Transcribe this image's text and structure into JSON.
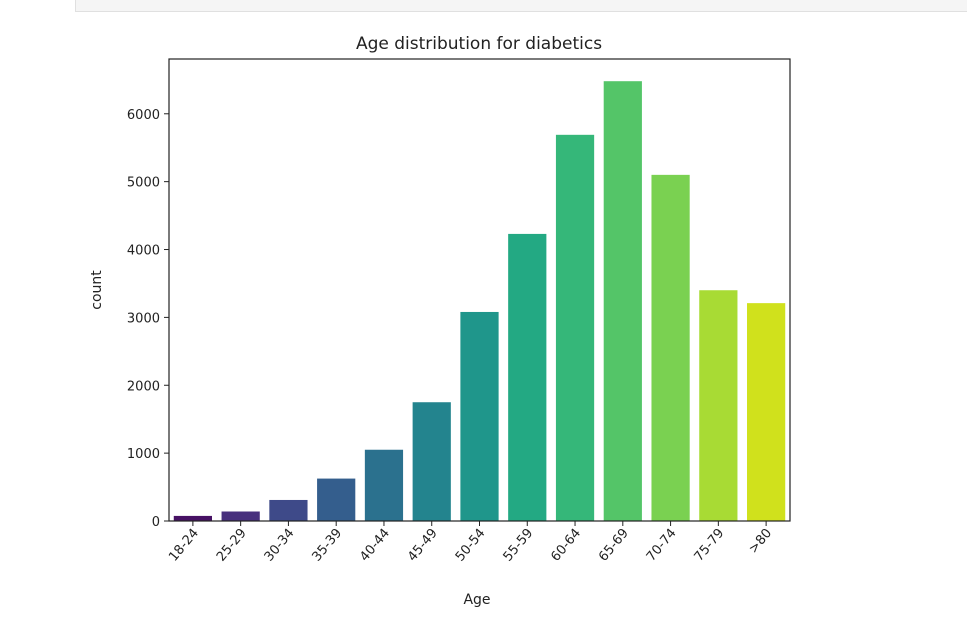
{
  "chart_data": {
    "type": "bar",
    "title": "Age distribution for diabetics",
    "xlabel": "Age",
    "ylabel": "count",
    "categories": [
      "18-24",
      "25-29",
      "30-34",
      "35-39",
      "40-44",
      "45-49",
      "50-54",
      "55-59",
      "60-64",
      "65-69",
      "70-74",
      "75-79",
      ">80"
    ],
    "values": [
      75,
      140,
      310,
      625,
      1050,
      1750,
      3080,
      4230,
      5690,
      6480,
      5100,
      3400,
      3210
    ],
    "ylim": [
      0,
      6800
    ],
    "yticks": [
      0,
      1000,
      2000,
      3000,
      4000,
      5000,
      6000
    ],
    "grid": false,
    "colors": [
      "#471164",
      "#472f7d",
      "#3e4a89",
      "#345e8d",
      "#2b718e",
      "#23848e",
      "#1f968b",
      "#23a983",
      "#35b779",
      "#54c568",
      "#7ad151",
      "#a8db34",
      "#d0e11c"
    ]
  }
}
